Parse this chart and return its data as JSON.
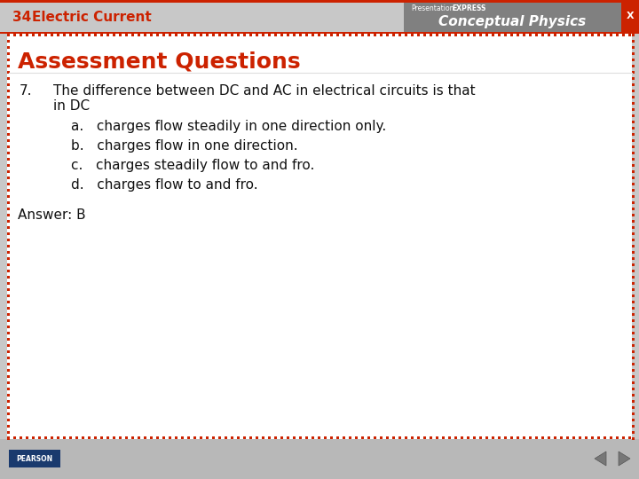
{
  "header_bg": "#c8c8c8",
  "header_num": "34",
  "header_title": "Electric Current",
  "header_num_color": "#cc2200",
  "header_title_color": "#cc2200",
  "red_bar_color": "#cc2200",
  "logo_bg": "#808080",
  "logo_text_presentation": "Presentation",
  "logo_text_express": "EXPRESS",
  "logo_subtext": "Conceptual Physics",
  "xbutton_color": "#cc2200",
  "main_bg": "#ffffff",
  "dot_color": "#cc2200",
  "section_title": "Assessment Questions",
  "section_title_color": "#cc2200",
  "question_num": "7.",
  "question_line1": "The difference between DC and AC in electrical circuits is that",
  "question_line2": "in DC",
  "choice_a": "a.   charges flow steadily in one direction only.",
  "choice_b": "b.   charges flow in one direction.",
  "choice_c": "c.   charges steadily flow to and fro.",
  "choice_d": "d.   charges flow to and fro.",
  "answer": "Answer: B",
  "footer_bg": "#b8b8b8",
  "pearson_bg": "#1a3a6e",
  "text_color": "#111111"
}
